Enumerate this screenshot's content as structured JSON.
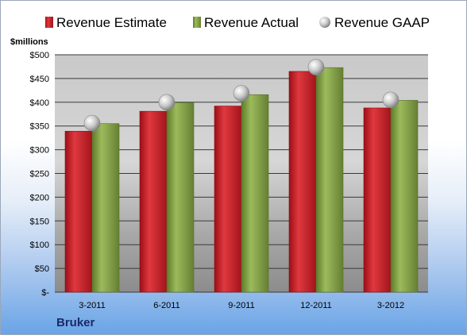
{
  "chart_data": {
    "type": "bar",
    "title": "",
    "company": "Bruker",
    "ylabel": "$millions",
    "ylim": [
      0,
      500
    ],
    "ytick_step": 50,
    "ytick_labels": [
      "$-",
      "$50",
      "$100",
      "$150",
      "$200",
      "$250",
      "$300",
      "$350",
      "$400",
      "$450",
      "$500"
    ],
    "categories": [
      "3-2011",
      "6-2011",
      "9-2011",
      "12-2011",
      "3-2012"
    ],
    "legend_position": "top",
    "grid": true,
    "series": [
      {
        "name": "Revenue Estimate",
        "kind": "bar",
        "color": "#c8202a",
        "values": [
          339,
          381,
          392,
          465,
          388
        ]
      },
      {
        "name": "Revenue Actual",
        "kind": "bar",
        "color": "#7a9a3e",
        "values": [
          355,
          399,
          416,
          473,
          404
        ]
      },
      {
        "name": "Revenue GAAP",
        "kind": "marker",
        "color": "#b8b8b8",
        "values": [
          356,
          400,
          419,
          474,
          405
        ]
      }
    ]
  }
}
